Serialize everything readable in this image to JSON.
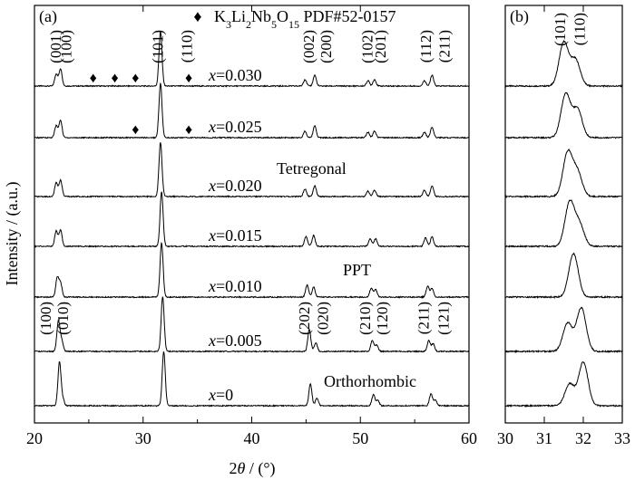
{
  "chart_data": [
    {
      "panel": "(a)",
      "type": "line",
      "xlabel_prefix": "2",
      "xlabel_theta": "θ",
      "xlabel_suffix": " / (°)",
      "ylabel": "Intensity / (a.u.)",
      "xlim": [
        20,
        60
      ],
      "x_ticks": [
        20,
        30,
        40,
        50,
        60
      ],
      "legend": {
        "marker": "♦",
        "text_pre": "K",
        "sub1": "3",
        "mid1": "Li",
        "sub2": "2",
        "mid2": "Nb",
        "sub3": "5",
        "mid3": "O",
        "sub4": "15",
        "text_post": " PDF#52-0157"
      },
      "series": [
        {
          "name": "x=0.030",
          "var": "x",
          "value": "=0.030",
          "peaks": [
            [
              22.0,
              0.22
            ],
            [
              22.4,
              0.32
            ],
            [
              31.6,
              1.0
            ],
            [
              44.9,
              0.12
            ],
            [
              45.8,
              0.2
            ],
            [
              50.7,
              0.1
            ],
            [
              51.3,
              0.12
            ],
            [
              55.9,
              0.1
            ],
            [
              56.6,
              0.2
            ]
          ]
        },
        {
          "name": "x=0.025",
          "var": "x",
          "value": "=0.025",
          "peaks": [
            [
              22.0,
              0.22
            ],
            [
              22.4,
              0.32
            ],
            [
              31.6,
              1.0
            ],
            [
              44.9,
              0.12
            ],
            [
              45.8,
              0.22
            ],
            [
              50.7,
              0.1
            ],
            [
              51.3,
              0.12
            ],
            [
              55.9,
              0.1
            ],
            [
              56.6,
              0.2
            ]
          ]
        },
        {
          "name": "x=0.020",
          "var": "x",
          "value": "=0.020",
          "peaks": [
            [
              22.0,
              0.25
            ],
            [
              22.4,
              0.3
            ],
            [
              31.6,
              1.0
            ],
            [
              44.9,
              0.14
            ],
            [
              45.8,
              0.2
            ],
            [
              50.7,
              0.1
            ],
            [
              51.3,
              0.12
            ],
            [
              55.9,
              0.12
            ],
            [
              56.6,
              0.2
            ]
          ]
        },
        {
          "name": "x=0.015",
          "var": "x",
          "value": "=0.015",
          "peaks": [
            [
              22.0,
              0.28
            ],
            [
              22.4,
              0.3
            ],
            [
              31.7,
              1.0
            ],
            [
              45.0,
              0.18
            ],
            [
              45.7,
              0.2
            ],
            [
              50.9,
              0.14
            ],
            [
              51.4,
              0.14
            ],
            [
              56.0,
              0.16
            ],
            [
              56.6,
              0.18
            ]
          ]
        },
        {
          "name": "x=0.010",
          "var": "x",
          "value": "=0.010",
          "peaks": [
            [
              22.1,
              0.35
            ],
            [
              22.4,
              0.25
            ],
            [
              31.7,
              1.0
            ],
            [
              45.1,
              0.22
            ],
            [
              45.7,
              0.18
            ],
            [
              51.0,
              0.16
            ],
            [
              51.4,
              0.14
            ],
            [
              56.2,
              0.2
            ],
            [
              56.6,
              0.16
            ]
          ]
        },
        {
          "name": "x=0.005",
          "var": "x",
          "value": "=0.005",
          "peaks": [
            [
              22.2,
              0.55
            ],
            [
              22.5,
              0.2
            ],
            [
              31.8,
              1.0
            ],
            [
              45.3,
              0.4
            ],
            [
              45.9,
              0.16
            ],
            [
              51.1,
              0.2
            ],
            [
              51.5,
              0.12
            ],
            [
              56.3,
              0.2
            ],
            [
              56.7,
              0.14
            ]
          ]
        },
        {
          "name": "x=0",
          "var": "x",
          "value": "=0",
          "peaks": [
            [
              22.3,
              0.8
            ],
            [
              22.6,
              0.12
            ],
            [
              31.9,
              1.0
            ],
            [
              45.4,
              0.4
            ],
            [
              46.0,
              0.14
            ],
            [
              51.2,
              0.2
            ],
            [
              51.6,
              0.1
            ],
            [
              56.5,
              0.22
            ],
            [
              56.9,
              0.1
            ]
          ]
        }
      ],
      "phase_labels": [
        "Tetregonal",
        "PPT",
        "Orthorhombic"
      ],
      "top_hkl": [
        {
          "label": "(001)",
          "x": 21.9
        },
        {
          "label": "(100)",
          "x": 22.9
        },
        {
          "label": "(101)",
          "x": 31.3
        },
        {
          "label": "(110)",
          "x": 34.0
        },
        {
          "label": "(002)",
          "x": 45.2
        },
        {
          "label": "(200)",
          "x": 46.8
        },
        {
          "label": "(102)",
          "x": 50.6
        },
        {
          "label": "(201)",
          "x": 51.8
        },
        {
          "label": "(112)",
          "x": 56.0
        },
        {
          "label": "(211)",
          "x": 57.7
        }
      ],
      "bottom_hkl": [
        {
          "label": "(100)",
          "x": 21.0
        },
        {
          "label": "(010)",
          "x": 22.6
        },
        {
          "label": "(202)",
          "x": 44.8
        },
        {
          "label": "(020)",
          "x": 46.5
        },
        {
          "label": "(210)",
          "x": 50.4
        },
        {
          "label": "(120)",
          "x": 52.0
        },
        {
          "label": "(211)",
          "x": 55.8
        },
        {
          "label": "(121)",
          "x": 57.6
        }
      ],
      "impurity_markers": [
        {
          "series": "x=0.030",
          "x": [
            25.4,
            27.4,
            29.3,
            34.2
          ]
        },
        {
          "series": "x=0.025",
          "x": [
            29.3,
            34.2
          ]
        }
      ]
    },
    {
      "panel": "(b)",
      "type": "line",
      "xlim": [
        30,
        33
      ],
      "x_ticks": [
        30,
        31,
        32,
        33
      ],
      "hkl": [
        {
          "label": "(101)",
          "x": 31.4
        },
        {
          "label": "(110)",
          "x": 31.9
        }
      ],
      "series": [
        {
          "name": "x=0.030",
          "peaks": [
            [
              31.5,
              1.0
            ],
            [
              31.8,
              0.6
            ]
          ]
        },
        {
          "name": "x=0.025",
          "peaks": [
            [
              31.55,
              1.0
            ],
            [
              31.85,
              0.65
            ]
          ]
        },
        {
          "name": "x=0.020",
          "peaks": [
            [
              31.6,
              1.0
            ],
            [
              31.85,
              0.55
            ]
          ]
        },
        {
          "name": "x=0.015",
          "peaks": [
            [
              31.65,
              1.0
            ],
            [
              31.9,
              0.5
            ]
          ]
        },
        {
          "name": "x=0.010",
          "peaks": [
            [
              31.75,
              1.0
            ]
          ]
        },
        {
          "name": "x=0.005",
          "peaks": [
            [
              31.6,
              0.65
            ],
            [
              31.95,
              1.0
            ]
          ]
        },
        {
          "name": "x=0",
          "peaks": [
            [
              31.65,
              0.5
            ],
            [
              32.0,
              1.0
            ]
          ]
        }
      ]
    }
  ]
}
